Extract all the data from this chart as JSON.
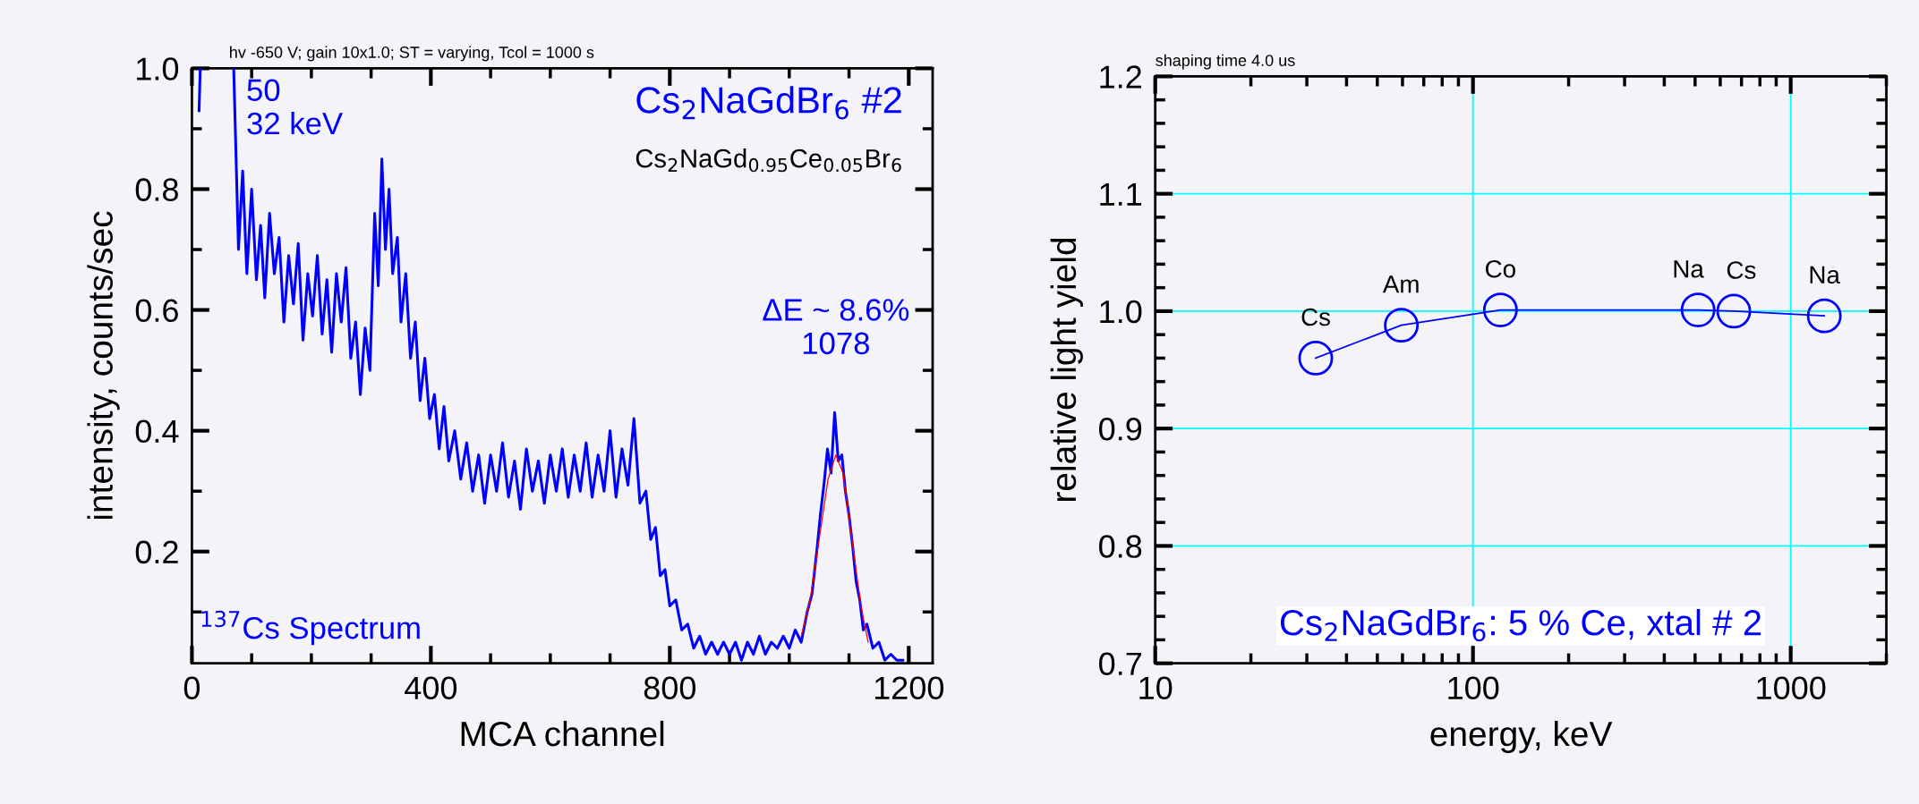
{
  "chart_data": [
    {
      "type": "line",
      "subtitle": "hv -650 V; gain 10x1.0; ST = varying, Tcol = 1000 s",
      "xlabel": "MCA channel",
      "ylabel": "intensity, counts/sec",
      "xlim": [
        0,
        1240
      ],
      "ylim": [
        0.015,
        1.0
      ],
      "xticks": [
        0,
        400,
        800,
        1200
      ],
      "yticks": [
        0.2,
        0.4,
        0.6,
        0.8,
        {
          "value": 1.0,
          "label": "1.0"
        }
      ],
      "grid": false,
      "marker": "none",
      "line_style": "solid",
      "series": [
        {
          "color": "#0000ff",
          "x": [
            12,
            14,
            40,
            70,
            78,
            85,
            92,
            100,
            108,
            115,
            122,
            130,
            138,
            146,
            154,
            162,
            170,
            178,
            186,
            194,
            202,
            210,
            218,
            226,
            234,
            242,
            250,
            258,
            266,
            274,
            282,
            290,
            298,
            306,
            312,
            318,
            324,
            330,
            336,
            344,
            350,
            358,
            366,
            374,
            382,
            390,
            398,
            406,
            414,
            422,
            430,
            440,
            450,
            460,
            470,
            480,
            490,
            500,
            510,
            520,
            530,
            540,
            550,
            560,
            570,
            580,
            590,
            600,
            610,
            620,
            630,
            640,
            650,
            660,
            670,
            680,
            690,
            700,
            710,
            720,
            730,
            740,
            750,
            760,
            768,
            776,
            784,
            792,
            800,
            810,
            820,
            830,
            840,
            850,
            860,
            870,
            880,
            890,
            900,
            910,
            920,
            930,
            940,
            950,
            960,
            970,
            980,
            990,
            1000,
            1010,
            1020,
            1030,
            1038,
            1046,
            1052,
            1058,
            1064,
            1070,
            1076,
            1082,
            1088,
            1094,
            1100,
            1106,
            1112,
            1118,
            1124,
            1130,
            1140,
            1150,
            1160,
            1170,
            1180,
            1190
          ],
          "values": [
            0.93,
            1.0,
            null,
            1.0,
            0.7,
            0.83,
            0.66,
            0.8,
            0.65,
            0.74,
            0.62,
            0.76,
            0.66,
            0.72,
            0.58,
            0.69,
            0.61,
            0.71,
            0.55,
            0.66,
            0.59,
            0.69,
            0.56,
            0.65,
            0.53,
            0.66,
            0.58,
            0.67,
            0.52,
            0.58,
            0.46,
            0.57,
            0.5,
            0.76,
            0.64,
            0.85,
            0.7,
            0.8,
            0.66,
            0.72,
            0.58,
            0.66,
            0.52,
            0.58,
            0.45,
            0.52,
            0.42,
            0.46,
            0.37,
            0.44,
            0.35,
            0.4,
            0.32,
            0.38,
            0.3,
            0.36,
            0.28,
            0.36,
            0.3,
            0.38,
            0.29,
            0.35,
            0.27,
            0.37,
            0.3,
            0.35,
            0.28,
            0.36,
            0.3,
            0.37,
            0.29,
            0.36,
            0.3,
            0.38,
            0.29,
            0.36,
            0.3,
            0.4,
            0.29,
            0.37,
            0.31,
            0.42,
            0.28,
            0.3,
            0.22,
            0.24,
            0.16,
            0.17,
            0.11,
            0.12,
            0.07,
            0.08,
            0.04,
            0.06,
            0.03,
            0.05,
            0.03,
            0.05,
            0.03,
            0.05,
            0.02,
            0.05,
            0.03,
            0.06,
            0.03,
            0.05,
            0.04,
            0.06,
            0.04,
            0.07,
            0.05,
            0.1,
            0.13,
            0.2,
            0.26,
            0.31,
            0.37,
            0.33,
            0.43,
            0.35,
            0.36,
            0.3,
            0.26,
            0.21,
            0.15,
            0.12,
            0.07,
            0.08,
            0.04,
            0.05,
            0.02,
            0.03,
            0.02,
            0.02
          ]
        },
        {
          "color": "#ff0000",
          "x": [
            1020,
            1035,
            1050,
            1065,
            1078,
            1090,
            1105,
            1120,
            1132
          ],
          "values": [
            0.06,
            0.12,
            0.22,
            0.32,
            0.36,
            0.33,
            0.22,
            0.11,
            0.05
          ]
        }
      ],
      "annotations": [
        {
          "text": "50\n32 keV",
          "x": 70,
          "y": 1.0
        },
        "Cs$_{2}$NaGdBr$_{6}$ #2",
        "Cs$_{2}$NaGd$_{0.95}$Ce$_{0.05}$Br$_{6}$",
        {
          "text": "ΔE ~ 8.6%\n1078",
          "x": 1078,
          "y": 0.43
        },
        "$^{137}$Cs Spectrum"
      ]
    },
    {
      "type": "line",
      "subtitle": "shaping time 4.0 us",
      "xlabel": "energy, keV",
      "ylabel": "relative light yield",
      "log": "x",
      "xlim": [
        10,
        2000
      ],
      "ylim": [
        0.7,
        1.2
      ],
      "xticks": [
        10,
        100,
        1000
      ],
      "yticks": [
        0.7,
        0.8,
        0.9,
        {
          "value": 1.0,
          "label": "1.0"
        },
        1.1,
        1.2
      ],
      "grid": true,
      "marker": "circle",
      "line_style": "solid",
      "series": [
        {
          "color": "#0000ff",
          "x": [
            32,
            59.5,
            122,
            511,
            662,
            1275
          ],
          "values": [
            0.96,
            0.988,
            1.001,
            1.001,
            1.0,
            0.996
          ]
        }
      ],
      "annotations": [
        {
          "text": "Cs",
          "x": 32,
          "y": 0.96
        },
        {
          "text": "Am",
          "x": 59.5,
          "y": 0.988
        },
        {
          "text": "Co",
          "x": 122,
          "y": 1.001
        },
        {
          "text": "Na",
          "x": 511,
          "y": 1.001
        },
        {
          "text": "Cs",
          "x": 662,
          "y": 1.0
        },
        {
          "text": "Na",
          "x": 1275,
          "y": 0.996
        },
        "Cs$_{2}$NaGdBr$_{6}$: 5 % Ce, xtal # 2"
      ]
    }
  ]
}
